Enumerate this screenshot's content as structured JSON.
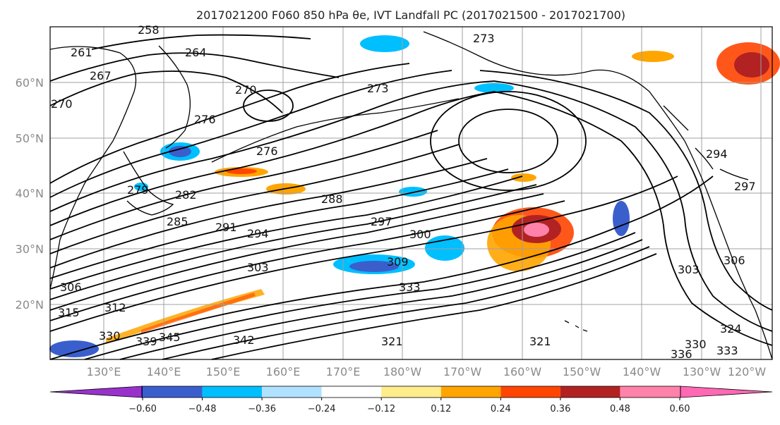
{
  "title": "2017021200 F060 850 hPa $\\theta_e$, IVT Landfall PC (2017021500 - 2017021700)",
  "title_display": "2017021200 F060 850 hPa θe, IVT Landfall PC (2017021500 - 2017021700)",
  "lat_labels": [
    "60°N",
    "50°N",
    "40°N",
    "30°N",
    "20°N"
  ],
  "lon_labels": [
    "130°E",
    "140°E",
    "150°E",
    "160°E",
    "170°E",
    "180°W",
    "170°W",
    "160°W",
    "150°W",
    "140°W",
    "130°W",
    "120°W"
  ],
  "contour_labels": [
    "258",
    "261",
    "264",
    "267",
    "270",
    "270",
    "273",
    "273",
    "276",
    "276",
    "279",
    "282",
    "285",
    "288",
    "291",
    "294",
    "297",
    "300",
    "303",
    "306",
    "309",
    "312",
    "315",
    "321",
    "321",
    "324",
    "330",
    "330",
    "333",
    "333",
    "336",
    "339",
    "342",
    "345",
    "303",
    "306",
    "294",
    "297"
  ],
  "colorbar": {
    "ticks": [
      "−0.60",
      "−0.48",
      "−0.36",
      "−0.24",
      "−0.12",
      "0.12",
      "0.24",
      "0.36",
      "0.48",
      "0.60"
    ],
    "colors": [
      "#9932cc",
      "#00008b",
      "#3a5fcd",
      "#00bfff",
      "#b0e2ff",
      "#ffffff",
      "#ffec8b",
      "#ffa500",
      "#ff4500",
      "#b22222",
      "#ff82ab",
      "#ff69b4"
    ]
  }
}
